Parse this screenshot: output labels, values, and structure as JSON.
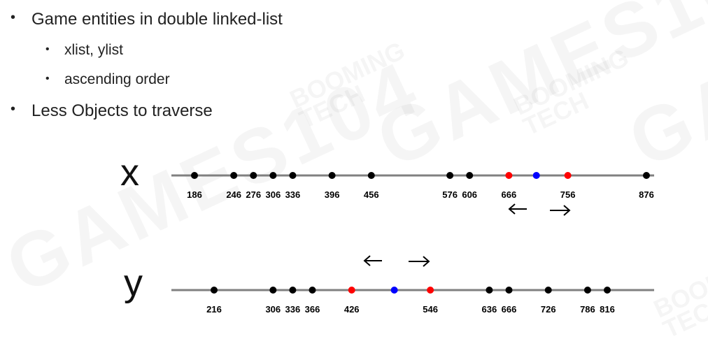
{
  "bullets": {
    "b1": "Game entities in double linked-list",
    "b1_sub1": "xlist, ylist",
    "b1_sub2": "ascending order",
    "b2": "Less Objects to traverse"
  },
  "watermark": {
    "big": "GAMES104",
    "small_top": "BOOMING",
    "small_bottom": "TECH"
  },
  "colors": {
    "axis": "#808080",
    "point": "#000000",
    "neighbor": "#ff0000",
    "self": "#0000ff"
  },
  "icons": {
    "left_arrow": "left-arrow-icon",
    "right_arrow": "right-arrow-icon"
  },
  "xlist": {
    "label": "x",
    "points": [
      {
        "value": 186,
        "label": "186",
        "type": "normal"
      },
      {
        "value": 246,
        "label": "246",
        "type": "normal"
      },
      {
        "value": 276,
        "label": "276",
        "type": "normal"
      },
      {
        "value": 306,
        "label": "306",
        "type": "normal"
      },
      {
        "value": 336,
        "label": "336",
        "type": "normal"
      },
      {
        "value": 396,
        "label": "396",
        "type": "normal"
      },
      {
        "value": 456,
        "label": "456",
        "type": "normal"
      },
      {
        "value": 576,
        "label": "576",
        "type": "normal"
      },
      {
        "value": 606,
        "label": "606",
        "type": "normal"
      },
      {
        "value": 666,
        "label": "666",
        "type": "neighbor"
      },
      {
        "value": 708,
        "label": "",
        "type": "self"
      },
      {
        "value": 756,
        "label": "756",
        "type": "neighbor"
      },
      {
        "value": 876,
        "label": "876",
        "type": "normal"
      }
    ]
  },
  "ylist": {
    "label": "y",
    "points": [
      {
        "value": 216,
        "label": "216",
        "type": "normal"
      },
      {
        "value": 306,
        "label": "306",
        "type": "normal"
      },
      {
        "value": 336,
        "label": "336",
        "type": "normal"
      },
      {
        "value": 366,
        "label": "366",
        "type": "normal"
      },
      {
        "value": 426,
        "label": "426",
        "type": "neighbor"
      },
      {
        "value": 491,
        "label": "",
        "type": "self"
      },
      {
        "value": 546,
        "label": "546",
        "type": "neighbor"
      },
      {
        "value": 636,
        "label": "636",
        "type": "normal"
      },
      {
        "value": 666,
        "label": "666",
        "type": "normal"
      },
      {
        "value": 726,
        "label": "726",
        "type": "normal"
      },
      {
        "value": 786,
        "label": "786",
        "type": "normal"
      },
      {
        "value": 816,
        "label": "816",
        "type": "normal"
      }
    ]
  }
}
